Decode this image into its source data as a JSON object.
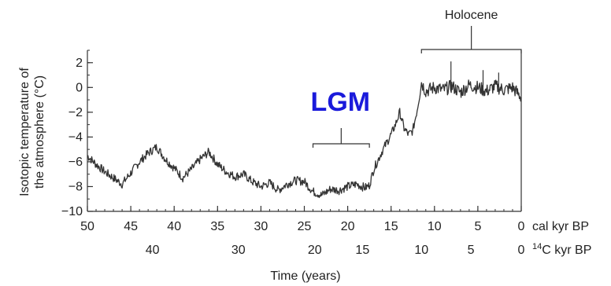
{
  "chart_data": {
    "type": "line",
    "xlabel": "Time (years)",
    "ylabel_line1": "Isotopic temperature of",
    "ylabel_line2": "the atmosphere (°C)",
    "xlim": [
      50,
      0
    ],
    "ylim": [
      -10,
      3
    ],
    "x_ticks": [
      "50",
      "45",
      "40",
      "35",
      "30",
      "25",
      "20",
      "15",
      "10",
      "5",
      "0"
    ],
    "x_tick_values": [
      50,
      45,
      40,
      35,
      30,
      25,
      20,
      15,
      10,
      5,
      0
    ],
    "y_ticks": [
      "2",
      "0",
      "−2",
      "−4",
      "−6",
      "−8",
      "−10"
    ],
    "y_tick_values": [
      2,
      0,
      -2,
      -4,
      -6,
      -8,
      -10
    ],
    "primary_axis_unit": "cal kyr BP",
    "secondary_axis_unit": "C kyr BP",
    "secondary_axis_unit_sup": "14",
    "secondary_ticks": [
      {
        "label": "40",
        "at_cal": 42.5
      },
      {
        "label": "30",
        "at_cal": 32.6
      },
      {
        "label": "20",
        "at_cal": 23.8
      },
      {
        "label": "15",
        "at_cal": 18.3
      },
      {
        "label": "10",
        "at_cal": 11.5
      },
      {
        "label": "5",
        "at_cal": 5.8
      },
      {
        "label": "0",
        "at_cal": 0
      }
    ],
    "annotations": {
      "holocene": {
        "text": "Holocene",
        "x_start": 11.5,
        "x_end": 0
      },
      "lgm": {
        "text": "LGM",
        "color": "#1a1adb",
        "x_start": 24,
        "x_end": 17.5
      }
    },
    "line_color": "#333333",
    "series": [
      {
        "x": [
          50,
          49,
          48,
          47,
          46,
          45,
          44,
          43,
          42,
          41,
          40,
          39,
          38,
          37,
          36,
          35,
          34,
          33,
          32,
          31,
          30,
          29,
          28,
          27,
          26,
          25,
          24,
          23,
          22,
          21,
          20,
          19,
          18,
          17.5,
          17,
          16,
          15,
          14.5,
          14,
          13.5,
          13,
          12.5,
          12,
          11.7,
          11.5,
          11,
          10,
          9,
          8,
          7,
          6,
          5,
          4,
          3,
          2,
          1,
          0
        ],
        "y": [
          -5.5,
          -6.2,
          -6.8,
          -7.3,
          -7.8,
          -6.9,
          -6.0,
          -5.3,
          -4.8,
          -5.8,
          -6.5,
          -7.3,
          -6.6,
          -5.8,
          -5.2,
          -6.2,
          -6.8,
          -7.2,
          -7.0,
          -7.6,
          -8.0,
          -7.7,
          -8.3,
          -7.8,
          -7.5,
          -7.6,
          -8.4,
          -8.7,
          -8.2,
          -8.3,
          -8.0,
          -7.8,
          -8.1,
          -7.9,
          -6.6,
          -5.1,
          -3.8,
          -3.0,
          -2.0,
          -3.3,
          -3.8,
          -3.5,
          -1.8,
          -0.6,
          0.4,
          -0.3,
          0.0,
          -0.2,
          0.1,
          -0.4,
          0.2,
          0.0,
          -0.3,
          0.1,
          -0.2,
          0.0,
          -0.8
        ]
      }
    ]
  }
}
